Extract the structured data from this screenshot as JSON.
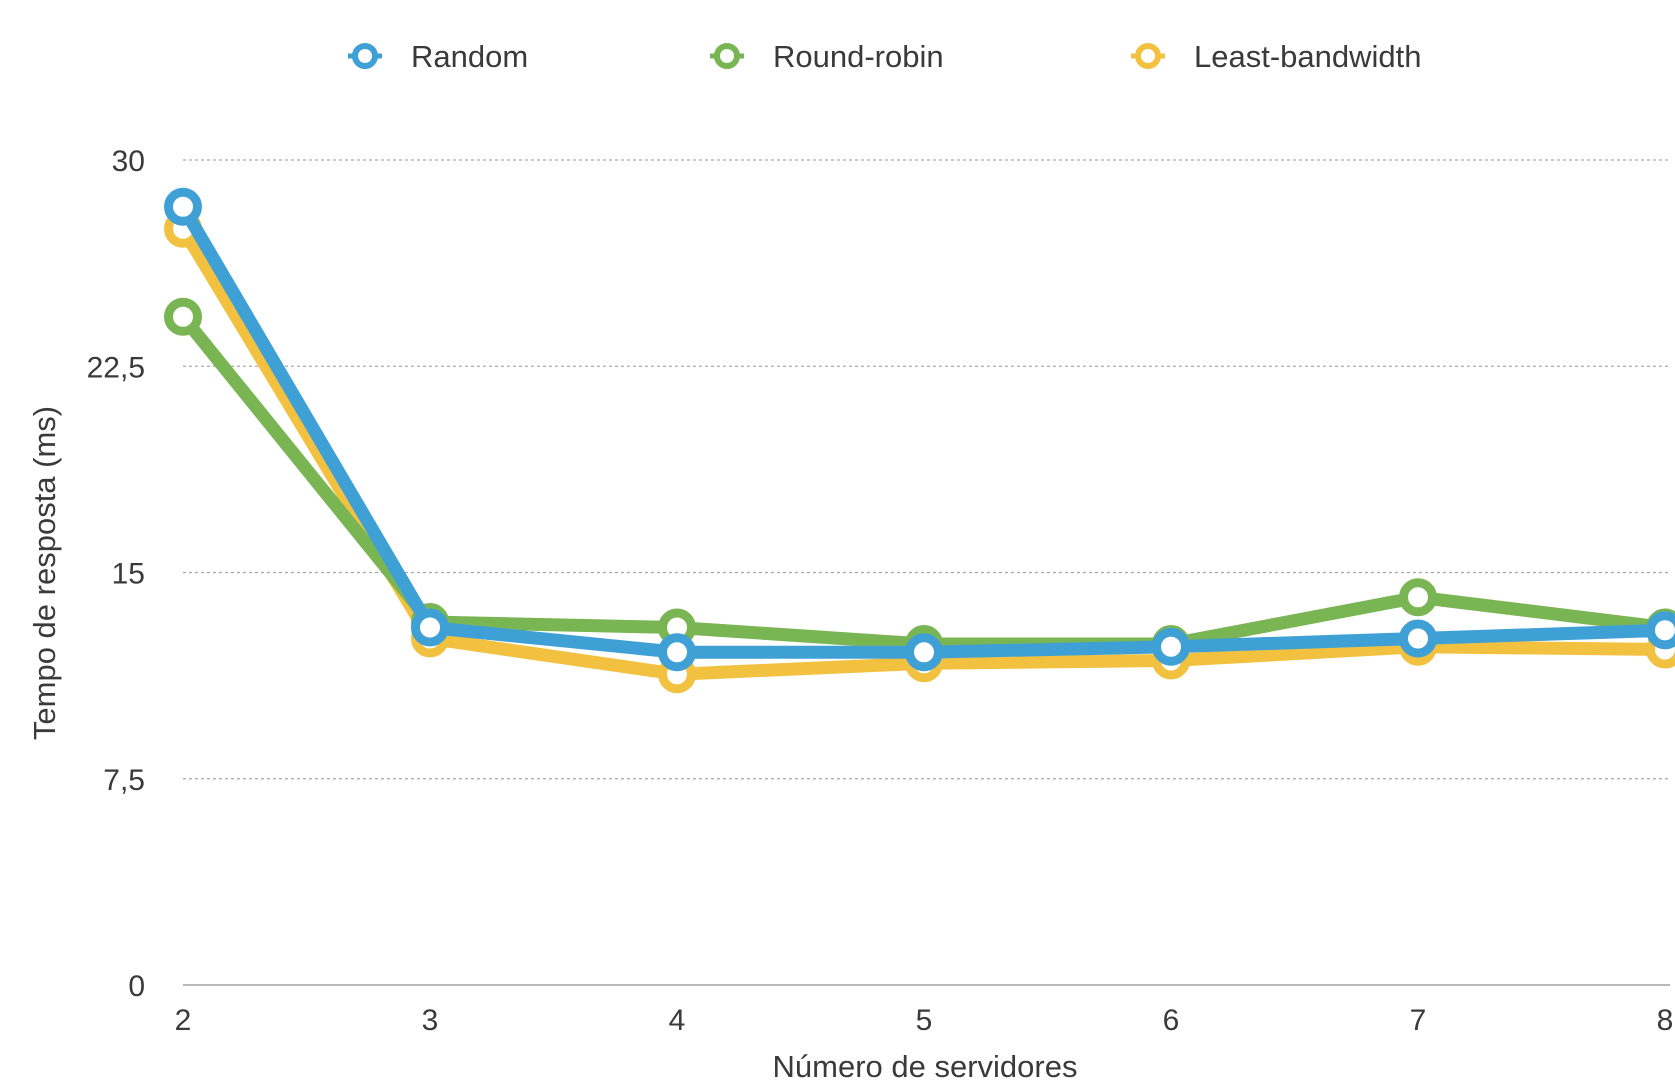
{
  "chart_data": {
    "type": "line",
    "xlabel": "Número de servidores",
    "ylabel": "Tempo de resposta (ms)",
    "x": [
      2,
      3,
      4,
      5,
      6,
      7,
      8
    ],
    "x_tick_labels": [
      "2",
      "3",
      "4",
      "5",
      "6",
      "7",
      "8"
    ],
    "ylim": [
      0,
      30
    ],
    "y_ticks": [
      0,
      7.5,
      15,
      22.5,
      30
    ],
    "y_tick_labels": [
      "0",
      "7,5",
      "15",
      "22,5",
      "30"
    ],
    "grid": true,
    "legend_position": "top-center",
    "series": [
      {
        "name": "Random",
        "color": "#3fa0d5",
        "values": [
          28.3,
          13.0,
          12.1,
          12.1,
          12.3,
          12.6,
          12.9
        ]
      },
      {
        "name": "Round-robin",
        "color": "#7ab554",
        "values": [
          24.3,
          13.2,
          13.0,
          12.4,
          12.4,
          14.1,
          13.0
        ]
      },
      {
        "name": "Least-bandwidth",
        "color": "#f1c13f",
        "values": [
          27.5,
          12.6,
          11.3,
          11.7,
          11.8,
          12.3,
          12.2
        ]
      }
    ],
    "draw_order": [
      "Least-bandwidth",
      "Round-robin",
      "Random"
    ]
  }
}
